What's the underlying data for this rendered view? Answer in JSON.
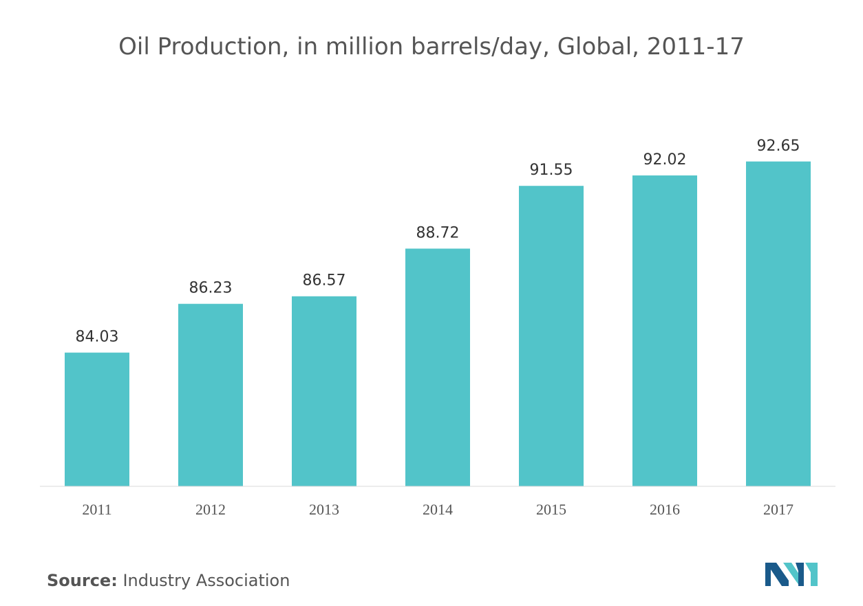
{
  "chart_data": {
    "type": "bar",
    "title": "Oil Production, in million barrels/day, Global, 2011-17",
    "categories": [
      "2011",
      "2012",
      "2013",
      "2014",
      "2015",
      "2016",
      "2017"
    ],
    "values": [
      84.03,
      86.23,
      86.57,
      88.72,
      91.55,
      92.02,
      92.65
    ],
    "value_labels": [
      "84.03",
      "86.23",
      "86.57",
      "88.72",
      "91.55",
      "92.02",
      "92.65"
    ],
    "xlabel": "",
    "ylabel": "",
    "ylim": [
      78,
      95
    ],
    "grid": false,
    "bar_color": "#52c4c9"
  },
  "source": {
    "label": "Source:",
    "text": "Industry Association"
  },
  "logo": {
    "icon": "brand-logo-icon",
    "colors": [
      "#1a5a8a",
      "#52c4c9"
    ]
  }
}
